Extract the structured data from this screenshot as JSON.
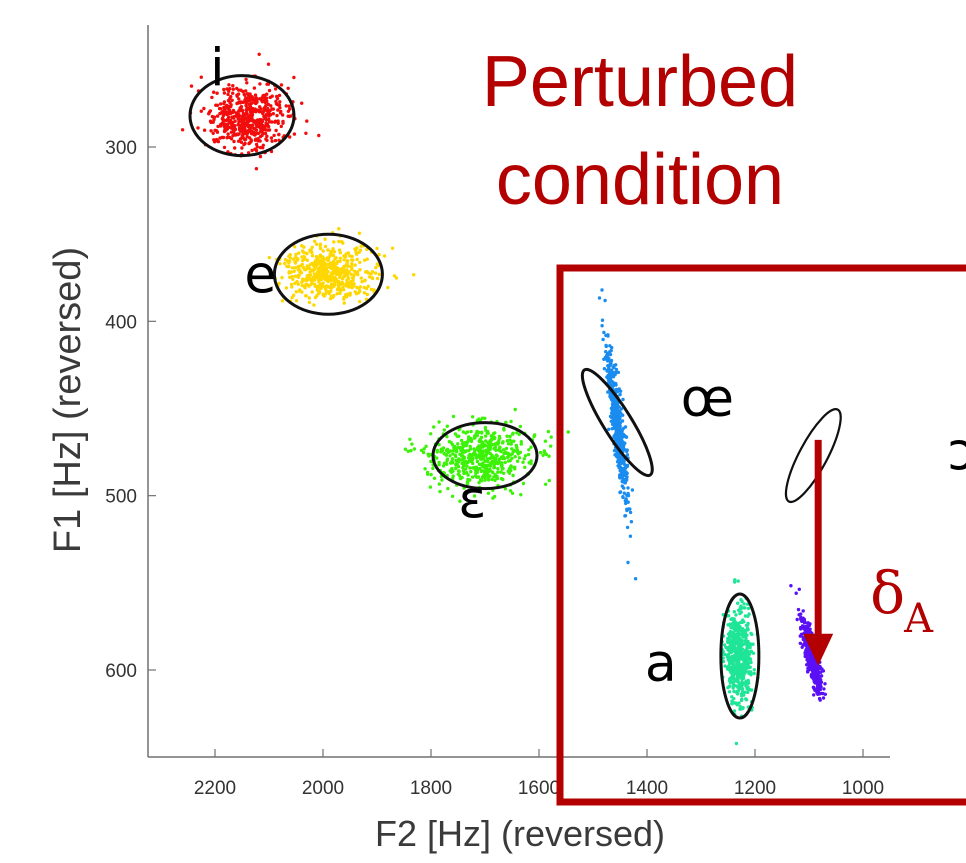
{
  "chart_data": {
    "type": "scatter",
    "title": "Perturbed\ncondition",
    "xlabel": "F2 [Hz] (reversed)",
    "ylabel": "F1 [Hz] (reversed)",
    "xlim": [
      2300,
      950
    ],
    "ylim": [
      250,
      650
    ],
    "x_reversed": true,
    "y_reversed": true,
    "x_ticks": [
      2200,
      2000,
      1800,
      1600,
      1400,
      1200,
      1000
    ],
    "y_ticks": [
      300,
      400,
      500,
      600
    ],
    "grid": false,
    "series": [
      {
        "name": "i",
        "color": "#f20d0d",
        "cx": 2140,
        "cy": 283,
        "sx": 38,
        "sy": 9,
        "corr": 0.0,
        "n": 550,
        "ellipse": {
          "cx": 2150,
          "cy": 282,
          "rx": 95,
          "ry": 23,
          "angle": 0
        }
      },
      {
        "name": "e",
        "color": "#ffd700",
        "cx": 1990,
        "cy": 372,
        "sx": 42,
        "sy": 8,
        "corr": 0.0,
        "n": 550,
        "ellipse": {
          "cx": 1990,
          "cy": 373,
          "rx": 96,
          "ry": 23,
          "angle": 0
        }
      },
      {
        "name": "ɛ",
        "color": "#3cf208",
        "cx": 1705,
        "cy": 477,
        "sx": 48,
        "sy": 9,
        "corr": 0.0,
        "n": 550,
        "ellipse": {
          "cx": 1700,
          "cy": 477,
          "rx": 90,
          "ry": 20,
          "angle": 0
        }
      },
      {
        "name": "œ",
        "color": "#1a8cf0",
        "cx": 1455,
        "cy": 460,
        "sx": 10,
        "sy": 22,
        "corr": -0.85,
        "n": 550,
        "ellipse": {
          "cx": 1455,
          "cy": 458,
          "rx": 66,
          "ry": 14,
          "angle": 58
        }
      },
      {
        "name": "ɔ",
        "color": "#000000",
        "cx": 1095,
        "cy": 478,
        "sx": 0,
        "sy": 0,
        "corr": 0.0,
        "n": 0,
        "ellipse": {
          "cx": 1092,
          "cy": 477,
          "rx": 58,
          "ry": 11,
          "angle": -62
        }
      },
      {
        "name": "a",
        "color": "#1fe597",
        "cx": 1230,
        "cy": 592,
        "sx": 12,
        "sy": 14,
        "corr": 0.0,
        "n": 550,
        "ellipse": {
          "cx": 1228,
          "cy": 592,
          "rx": 72,
          "ry": 14,
          "angle": -90
        }
      },
      {
        "name": "",
        "color": "#5a10f5",
        "cx": 1095,
        "cy": 592,
        "sx": 9,
        "sy": 10,
        "corr": -0.82,
        "n": 550,
        "ellipse": null
      }
    ],
    "annotation": {
      "arrow_from": [
        1083,
        468
      ],
      "arrow_to": [
        1083,
        593
      ],
      "label": "δ",
      "label_sub": "A",
      "color": "#b30000"
    },
    "highlight_box": {
      "color": "#b30000"
    }
  }
}
